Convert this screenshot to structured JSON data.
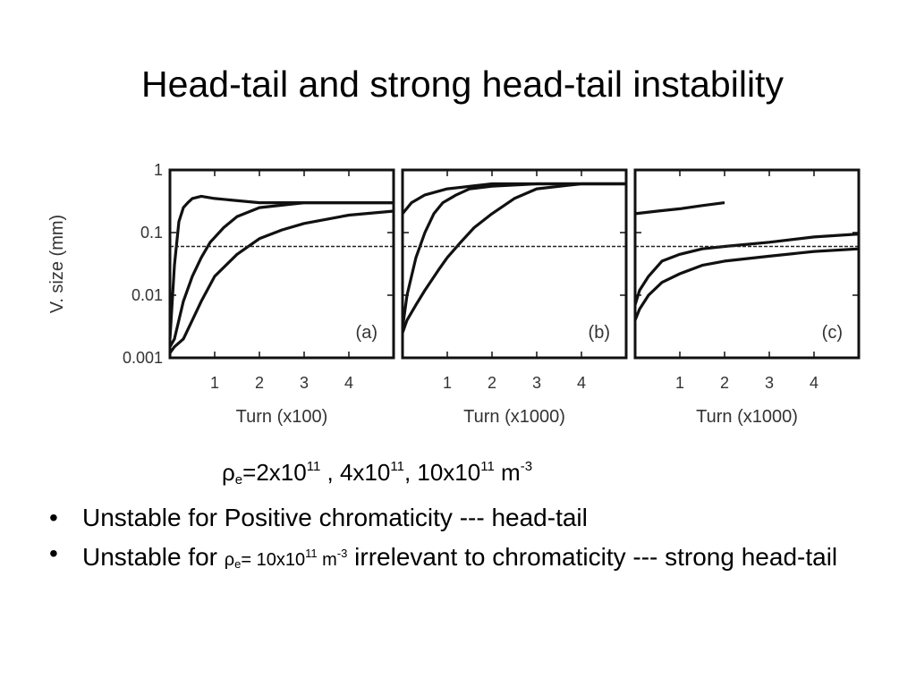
{
  "slide": {
    "title": "Head-tail and strong head-tail instability",
    "density_line": {
      "symbol": "ρ",
      "subscript": "e",
      "part1": "=2x10",
      "exp1": "11",
      "part2": " , 4x10",
      "exp2": "11",
      "part3": ", 10x10",
      "exp3": "11",
      "part4": " m",
      "exp4": "-3"
    },
    "bullets": [
      {
        "text": "Unstable for Positive chromaticity --- head-tail"
      },
      {
        "prefix": "Unstable for ",
        "symbol": "ρ",
        "subscript": "e",
        "eq": "= 10x10",
        "exp": "11",
        "unit": " m",
        "unit_exp": "-3",
        "suffix": " irrelevant to chromaticity  --- strong head-tail"
      }
    ]
  },
  "chart_data": [
    {
      "type": "line",
      "panel_label": "(a)",
      "xlabel": "Turn (x100)",
      "ylabel": "V. size (mm)",
      "x_ticks": [
        1,
        2,
        3,
        4
      ],
      "y_ticks": [
        "1",
        "0.1",
        "0.01",
        "0.001"
      ],
      "xlim": [
        0,
        5
      ],
      "ylim": [
        0.001,
        1
      ],
      "y_scale": "log",
      "threshold": 0.06,
      "series": [
        {
          "x": [
            0,
            0.1,
            0.2,
            0.3,
            0.4,
            0.5,
            0.7,
            1,
            2,
            3,
            4,
            5
          ],
          "values": [
            0.002,
            0.03,
            0.15,
            0.25,
            0.3,
            0.35,
            0.38,
            0.35,
            0.3,
            0.3,
            0.3,
            0.3
          ]
        },
        {
          "x": [
            0,
            0.1,
            0.2,
            0.3,
            0.5,
            0.7,
            0.9,
            1.2,
            1.5,
            2,
            3,
            4,
            5
          ],
          "values": [
            0.0015,
            0.002,
            0.004,
            0.008,
            0.02,
            0.04,
            0.07,
            0.12,
            0.18,
            0.25,
            0.3,
            0.3,
            0.3
          ]
        },
        {
          "x": [
            0,
            0.1,
            0.3,
            0.5,
            0.7,
            1,
            1.5,
            2,
            2.5,
            3,
            4,
            5
          ],
          "values": [
            0.0012,
            0.0015,
            0.002,
            0.004,
            0.008,
            0.02,
            0.045,
            0.08,
            0.11,
            0.14,
            0.19,
            0.22
          ]
        }
      ]
    },
    {
      "type": "line",
      "panel_label": "(b)",
      "xlabel": "Turn (x1000)",
      "x_ticks": [
        1,
        2,
        3,
        4
      ],
      "xlim": [
        0,
        5
      ],
      "ylim": [
        0.001,
        1
      ],
      "y_scale": "log",
      "threshold": 0.06,
      "series": [
        {
          "x": [
            0,
            0.2,
            0.5,
            1,
            2,
            3,
            4,
            5
          ],
          "values": [
            0.2,
            0.3,
            0.4,
            0.5,
            0.6,
            0.6,
            0.6,
            0.6
          ]
        },
        {
          "x": [
            0,
            0.1,
            0.3,
            0.5,
            0.7,
            0.9,
            1.2,
            1.5,
            2,
            3,
            4,
            5
          ],
          "values": [
            0.003,
            0.01,
            0.04,
            0.1,
            0.2,
            0.3,
            0.4,
            0.5,
            0.55,
            0.6,
            0.6,
            0.6
          ]
        },
        {
          "x": [
            0,
            0.1,
            0.3,
            0.5,
            0.8,
            1,
            1.3,
            1.6,
            2,
            2.5,
            3,
            4,
            5
          ],
          "values": [
            0.0025,
            0.004,
            0.007,
            0.012,
            0.025,
            0.04,
            0.07,
            0.12,
            0.2,
            0.35,
            0.5,
            0.6,
            0.6
          ]
        }
      ]
    },
    {
      "type": "line",
      "panel_label": "(c)",
      "xlabel": "Turn (x1000)",
      "x_ticks": [
        1,
        2,
        3,
        4
      ],
      "xlim": [
        0,
        5
      ],
      "ylim": [
        0.001,
        1
      ],
      "y_scale": "log",
      "threshold": 0.06,
      "series": [
        {
          "x": [
            0,
            0.5,
            1,
            1.5,
            2
          ],
          "values": [
            0.2,
            0.22,
            0.24,
            0.27,
            0.3
          ]
        },
        {
          "x": [
            0,
            0.1,
            0.3,
            0.6,
            1,
            1.5,
            2,
            3,
            4,
            5
          ],
          "values": [
            0.007,
            0.012,
            0.02,
            0.035,
            0.045,
            0.055,
            0.06,
            0.07,
            0.085,
            0.095
          ]
        },
        {
          "x": [
            0,
            0.1,
            0.3,
            0.6,
            1,
            1.5,
            2,
            3,
            4,
            5
          ],
          "values": [
            0.004,
            0.006,
            0.01,
            0.016,
            0.022,
            0.03,
            0.035,
            0.042,
            0.05,
            0.055
          ]
        }
      ]
    }
  ]
}
